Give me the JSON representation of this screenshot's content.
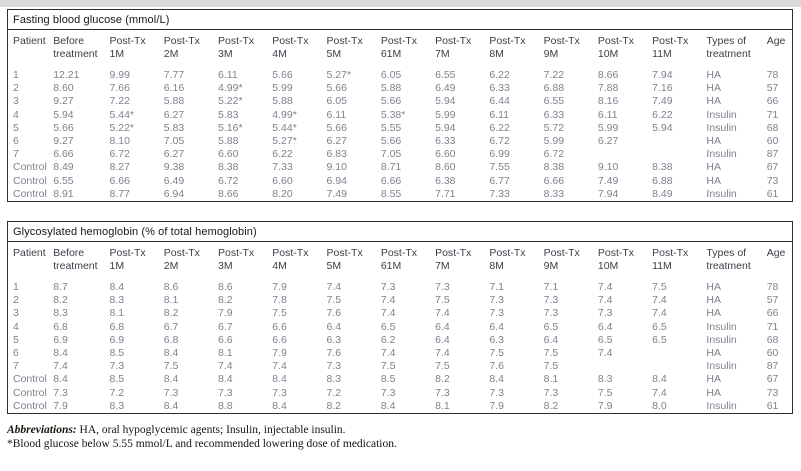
{
  "tables": [
    {
      "title": "Fasting blood glucose (mmol/L)",
      "columns": [
        {
          "l1": "Patient",
          "l2": ""
        },
        {
          "l1": "Before",
          "l2": "treatment"
        },
        {
          "l1": "Post-Tx",
          "l2": "1M"
        },
        {
          "l1": "Post-Tx",
          "l2": "2M"
        },
        {
          "l1": "Post-Tx",
          "l2": "3M"
        },
        {
          "l1": "Post-Tx",
          "l2": "4M"
        },
        {
          "l1": "Post-Tx",
          "l2": "5M"
        },
        {
          "l1": "Post-Tx",
          "l2": "61M"
        },
        {
          "l1": "Post-Tx",
          "l2": "7M"
        },
        {
          "l1": "Post-Tx",
          "l2": "8M"
        },
        {
          "l1": "Post-Tx",
          "l2": "9M"
        },
        {
          "l1": "Post-Tx",
          "l2": "10M"
        },
        {
          "l1": "Post-Tx",
          "l2": "11M"
        },
        {
          "l1": "Types of",
          "l2": "treatment"
        },
        {
          "l1": "Age",
          "l2": ""
        }
      ],
      "rows": [
        {
          "patient": "1",
          "values": [
            "12.21",
            "9.99",
            "7.77",
            "6.11",
            "5.66",
            "5.27*",
            "6.05",
            "6.55",
            "6.22",
            "7.22",
            "8.66",
            "7.94"
          ],
          "treatment": "HA",
          "age": "78"
        },
        {
          "patient": "2",
          "values": [
            "8.60",
            "7.66",
            "6.16",
            "4.99*",
            "5.99",
            "5.66",
            "5.88",
            "6.49",
            "6.33",
            "6.88",
            "7.88",
            "7.16"
          ],
          "treatment": "HA",
          "age": "57"
        },
        {
          "patient": "3",
          "values": [
            "9.27",
            "7.22",
            "5.88",
            "5.22*",
            "5.88",
            "6.05",
            "5.66",
            "5.94",
            "6.44",
            "6.55",
            "8.16",
            "7.49"
          ],
          "treatment": "HA",
          "age": "66"
        },
        {
          "patient": "4",
          "values": [
            "5.94",
            "5.44*",
            "6.27",
            "5.83",
            "4.99*",
            "6.11",
            "5.38*",
            "5.99",
            "6.11",
            "6.33",
            "6.11",
            "6.22"
          ],
          "treatment": "Insulin",
          "age": "71"
        },
        {
          "patient": "5",
          "values": [
            "5.66",
            "5.22*",
            "5.83",
            "5.16*",
            "5.44*",
            "5.66",
            "5.55",
            "5.94",
            "6.22",
            "5.72",
            "5.99",
            "5.94"
          ],
          "treatment": "Insulin",
          "age": "68"
        },
        {
          "patient": "6",
          "values": [
            "9.27",
            "8.10",
            "7.05",
            "5.88",
            "5.27*",
            "6.27",
            "5.66",
            "6.33",
            "6.72",
            "5.99",
            "6.27",
            ""
          ],
          "treatment": "HA",
          "age": "60"
        },
        {
          "patient": "7",
          "values": [
            "6.66",
            "6.72",
            "6.27",
            "6.60",
            "6.22",
            "6.83",
            "7.05",
            "6.60",
            "6.99",
            "6.72",
            "",
            ""
          ],
          "treatment": "Insulin",
          "age": "87"
        },
        {
          "patient": "Control 1",
          "values": [
            "8.49",
            "8.27",
            "9.38",
            "8.38",
            "7.33",
            "9.10",
            "8.71",
            "8.60",
            "7.55",
            "8.38",
            "9.10",
            "8.38"
          ],
          "treatment": "HA",
          "age": "67"
        },
        {
          "patient": "Control 2",
          "values": [
            "6.55",
            "6.66",
            "6.49",
            "6.72",
            "6.60",
            "6.94",
            "6.66",
            "6.38",
            "6.77",
            "6.66",
            "7.49",
            "6.88"
          ],
          "treatment": "HA",
          "age": "73"
        },
        {
          "patient": "Control 3",
          "values": [
            "8.91",
            "8.77",
            "6.94",
            "8.66",
            "8.20",
            "7.49",
            "8.55",
            "7.71",
            "7.33",
            "8.33",
            "7.94",
            "8.49"
          ],
          "treatment": "Insulin",
          "age": "61"
        }
      ]
    },
    {
      "title": "Glycosylated hemoglobin (% of total hemoglobin)",
      "columns": [
        {
          "l1": "Patient",
          "l2": ""
        },
        {
          "l1": "Before",
          "l2": "treatment"
        },
        {
          "l1": "Post-Tx",
          "l2": "1M"
        },
        {
          "l1": "Post-Tx",
          "l2": "2M"
        },
        {
          "l1": "Post-Tx",
          "l2": "3M"
        },
        {
          "l1": "Post-Tx",
          "l2": "4M"
        },
        {
          "l1": "Post-Tx",
          "l2": "5M"
        },
        {
          "l1": "Post-Tx",
          "l2": "61M"
        },
        {
          "l1": "Post-Tx",
          "l2": "7M"
        },
        {
          "l1": "Post-Tx",
          "l2": "8M"
        },
        {
          "l1": "Post-Tx",
          "l2": "9M"
        },
        {
          "l1": "Post-Tx",
          "l2": "10M"
        },
        {
          "l1": "Post-Tx",
          "l2": "11M"
        },
        {
          "l1": "Types of",
          "l2": "treatment"
        },
        {
          "l1": "Age",
          "l2": ""
        }
      ],
      "rows": [
        {
          "patient": "1",
          "values": [
            "8.7",
            "8.4",
            "8.6",
            "8.6",
            "7.9",
            "7.4",
            "7.3",
            "7.3",
            "7.1",
            "7.1",
            "7.4",
            "7.5"
          ],
          "treatment": "HA",
          "age": "78"
        },
        {
          "patient": "2",
          "values": [
            "8.2",
            "8.3",
            "8.1",
            "8.2",
            "7.8",
            "7.5",
            "7.4",
            "7.5",
            "7.3",
            "7.3",
            "7.4",
            "7.4"
          ],
          "treatment": "HA",
          "age": "57"
        },
        {
          "patient": "3",
          "values": [
            "8.3",
            "8.1",
            "8.2",
            "7.9",
            "7.5",
            "7.6",
            "7.4",
            "7.4",
            "7.3",
            "7.3",
            "7.3",
            "7.4"
          ],
          "treatment": "HA",
          "age": "66"
        },
        {
          "patient": "4",
          "values": [
            "6.8",
            "6.8",
            "6.7",
            "6.7",
            "6.6",
            "6.4",
            "6.5",
            "6.4",
            "6.4",
            "6.5",
            "6.4",
            "6.5"
          ],
          "treatment": "Insulin",
          "age": "71"
        },
        {
          "patient": "5",
          "values": [
            "6.9",
            "6.9",
            "6.8",
            "6.6",
            "6.6",
            "6.3",
            "6.2",
            "6.4",
            "6.3",
            "6.4",
            "6.5",
            "6.5"
          ],
          "treatment": "Insulin",
          "age": "68"
        },
        {
          "patient": "6",
          "values": [
            "8.4",
            "8.5",
            "8.4",
            "8.1",
            "7.9",
            "7.6",
            "7.4",
            "7.4",
            "7.5",
            "7.5",
            "7.4",
            ""
          ],
          "treatment": "HA",
          "age": "60"
        },
        {
          "patient": "7",
          "values": [
            "7.4",
            "7.3",
            "7.5",
            "7.4",
            "7.4",
            "7.3",
            "7.5",
            "7.5",
            "7.6",
            "7.5",
            "",
            ""
          ],
          "treatment": "Insulin",
          "age": "87"
        },
        {
          "patient": "Control 1",
          "values": [
            "8.4",
            "8.5",
            "8.4",
            "8.4",
            "8.4",
            "8.3",
            "8.5",
            "8.2",
            "8.4",
            "8.1",
            "8.3",
            "8.4"
          ],
          "treatment": "HA",
          "age": "67"
        },
        {
          "patient": "Control 2",
          "values": [
            "7.3",
            "7.2",
            "7.3",
            "7.3",
            "7.3",
            "7.2",
            "7.3",
            "7.3",
            "7.3",
            "7.3",
            "7.5",
            "7.4"
          ],
          "treatment": "HA",
          "age": "73"
        },
        {
          "patient": "Control 3",
          "values": [
            "7.9",
            "8.3",
            "8.4",
            "8.8",
            "8.4",
            "8.2",
            "8.4",
            "8.1",
            "7.9",
            "8.2",
            "7.9",
            "8.0"
          ],
          "treatment": "Insulin",
          "age": "61"
        }
      ]
    }
  ],
  "footnotes": {
    "abbreviations_label": "Abbreviations:",
    "abbreviations_text": " HA, oral hypoglycemic agents; Insulin, injectable insulin.",
    "asterisk_note": "*Blood glucose below 5.55 mmol/L and recommended lowering dose of medication."
  },
  "colors": {
    "border": "#2e2e2e",
    "title_text": "#16171a",
    "header_text": "#3a3e47",
    "data_text": "#7d828e",
    "top_strip": "#d9d9d9"
  }
}
